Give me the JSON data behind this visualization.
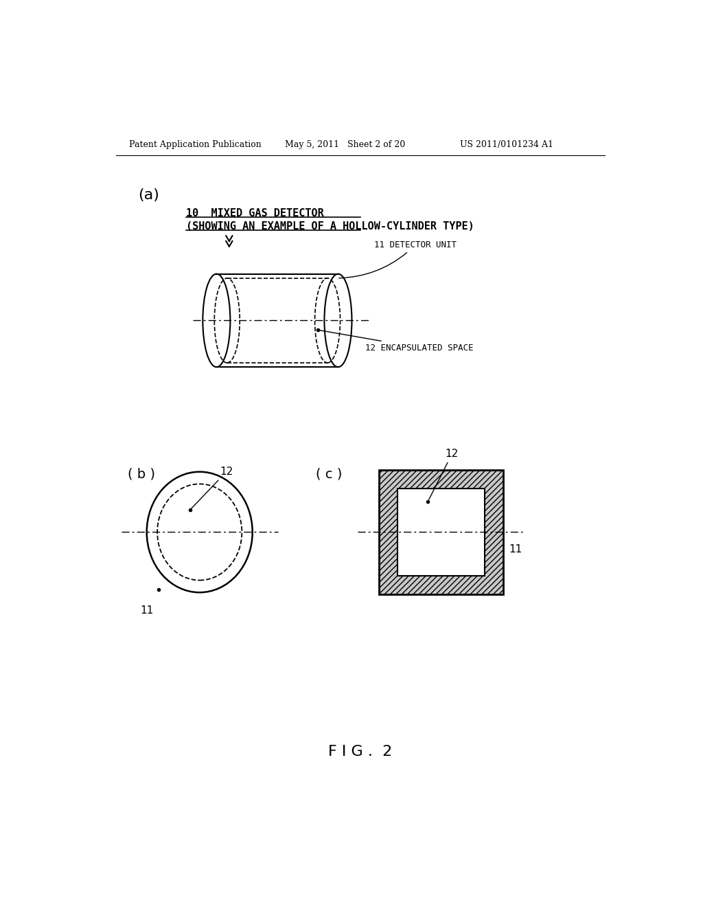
{
  "bg_color": "#ffffff",
  "header_left": "Patent Application Publication",
  "header_mid": "May 5, 2011   Sheet 2 of 20",
  "header_right": "US 2011/0101234 A1",
  "label_a": "(a)",
  "label_b": "( b )",
  "label_c": "( c )",
  "title_line1": "10  MIXED GAS DETECTOR",
  "title_line2": "(SHOWING AN EXAMPLE OF A HOLLOW-CYLINDER TYPE)",
  "label_11_detector": "11 DETECTOR UNIT",
  "label_12_encapsulated": "12 ENCAPSULATED SPACE",
  "fig_label": "F I G .  2"
}
